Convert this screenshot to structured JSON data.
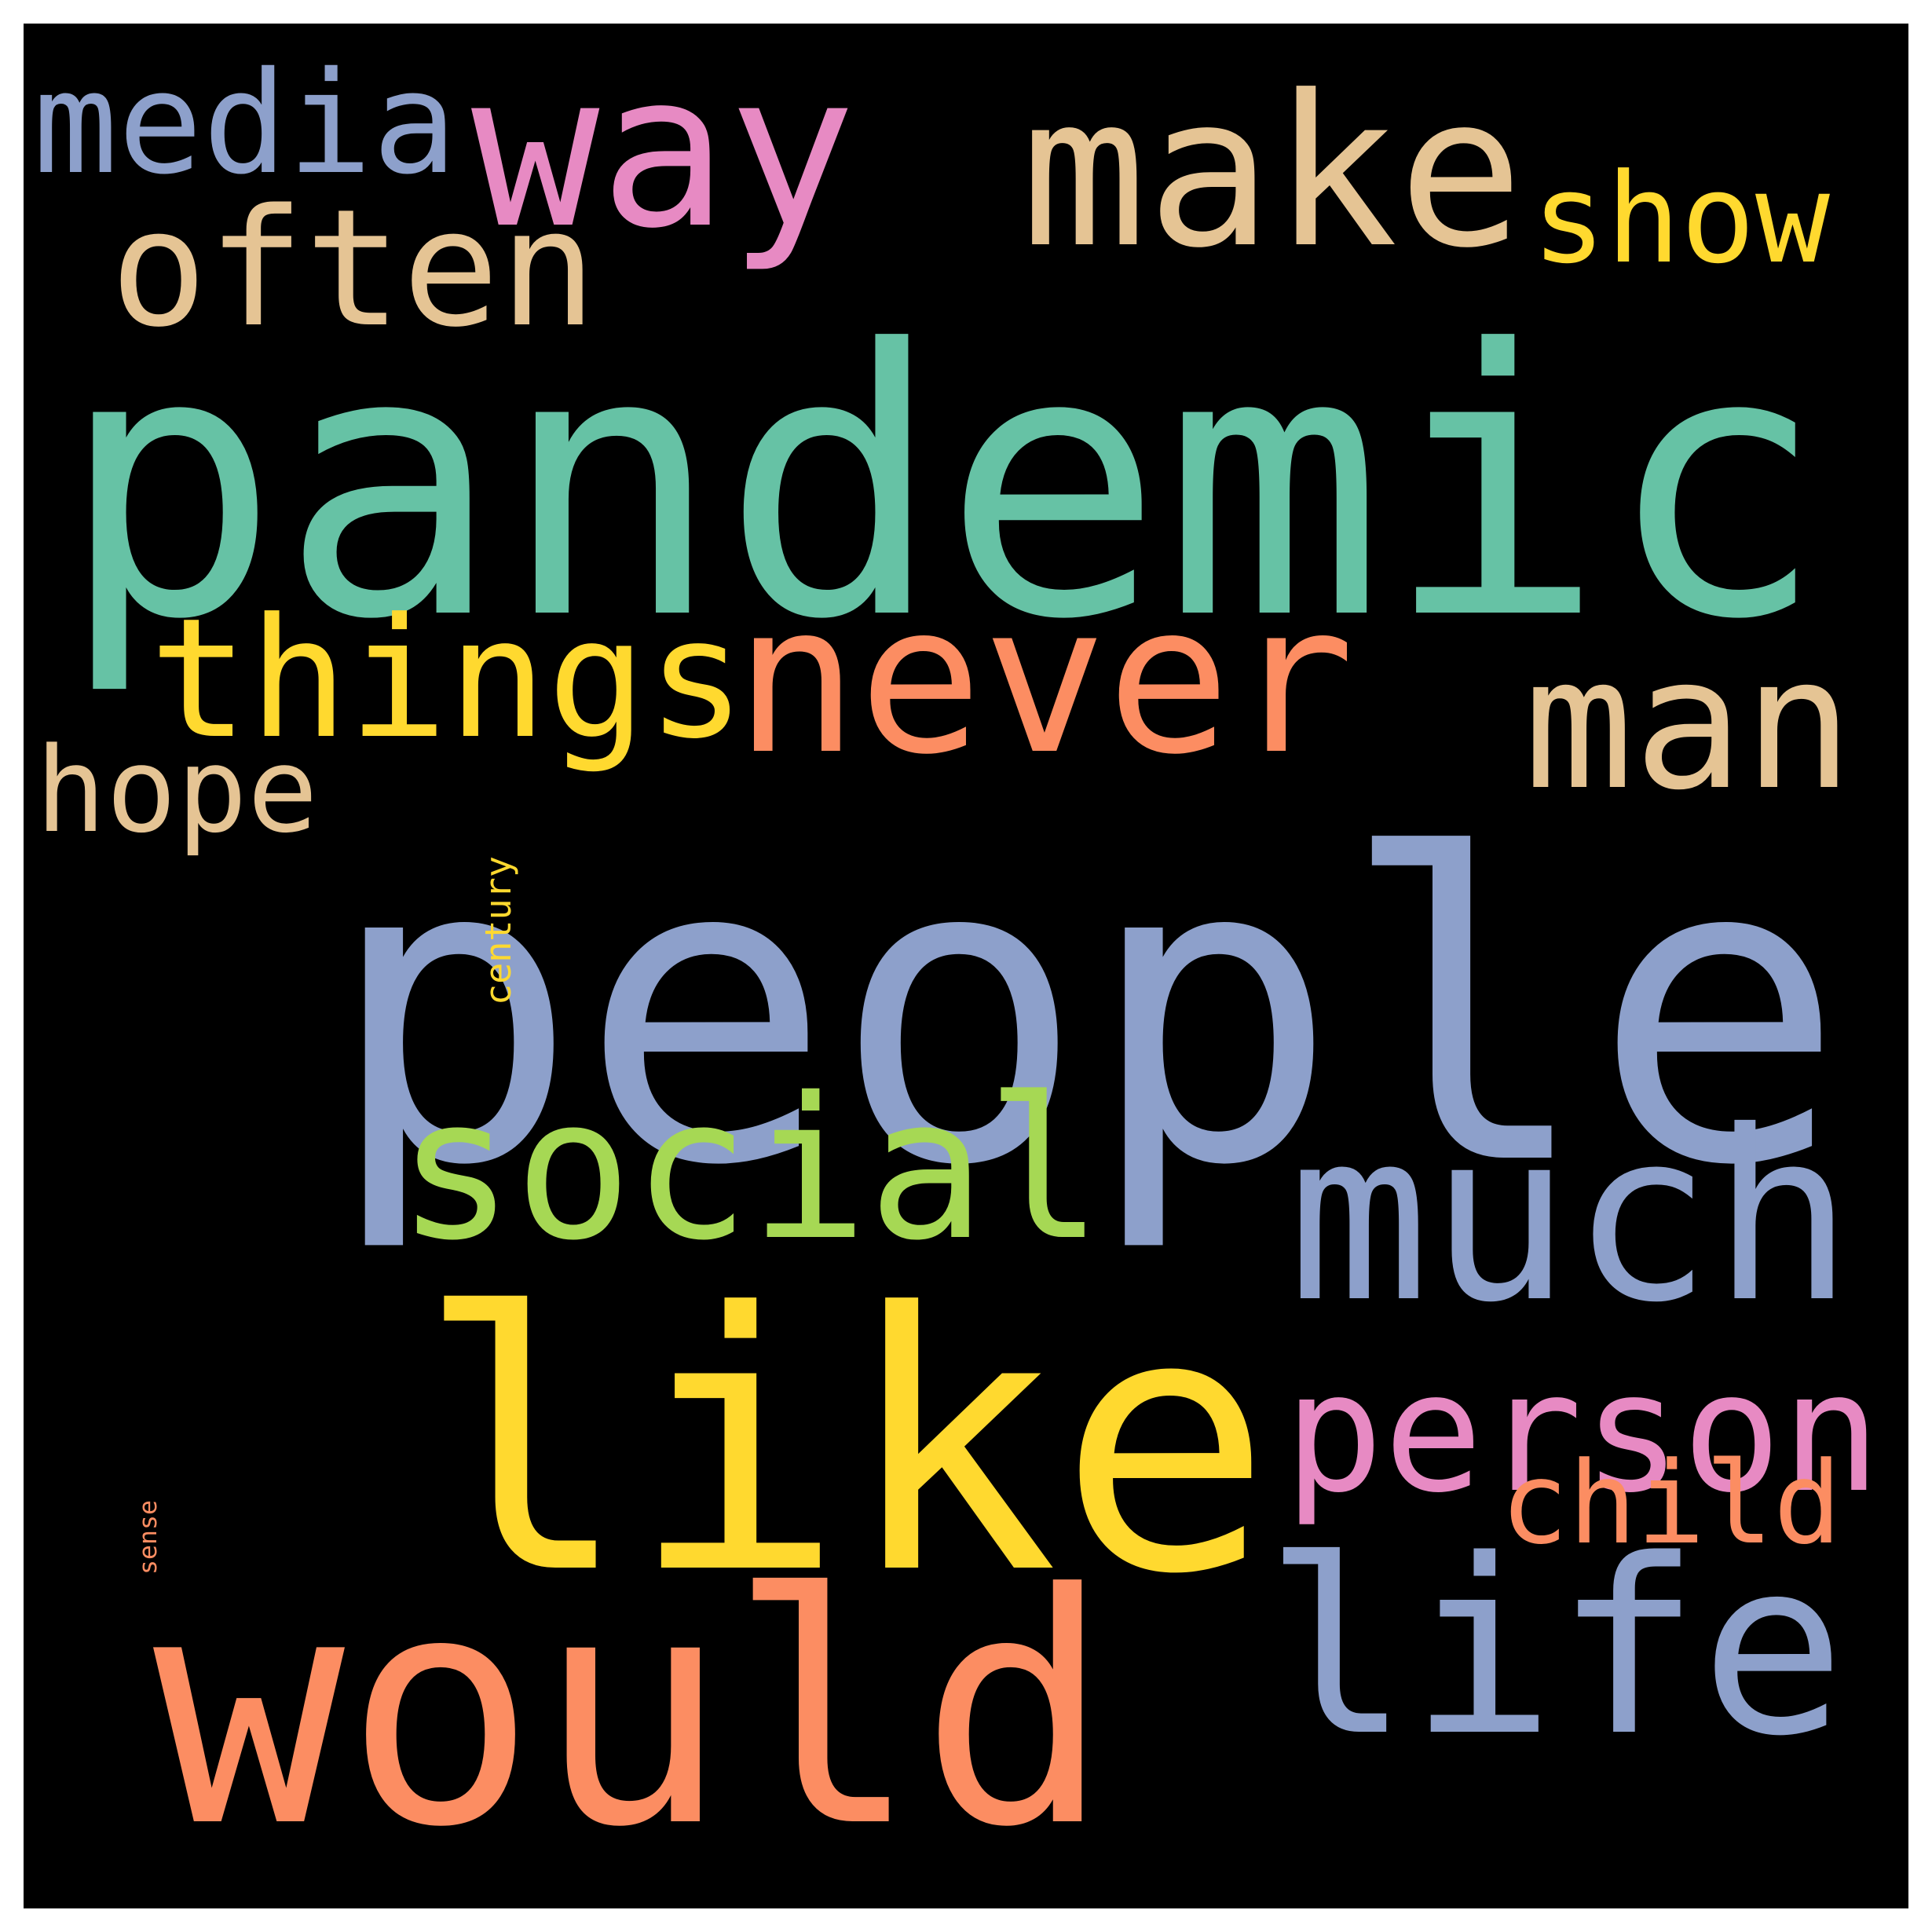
{
  "words": {
    "people": {
      "text": "people",
      "color": "#8DA0CB"
    },
    "pandemic": {
      "text": "pandemic",
      "color": "#66C2A5"
    },
    "like": {
      "text": "like",
      "color": "#FFD92F"
    },
    "would": {
      "text": "would",
      "color": "#FC8D62"
    },
    "much": {
      "text": "much",
      "color": "#8DA0CB"
    },
    "way": {
      "text": "way",
      "color": "#E78AC3"
    },
    "make": {
      "text": "make",
      "color": "#E5C494"
    },
    "never": {
      "text": "never",
      "color": "#FC8D62"
    },
    "things": {
      "text": "things",
      "color": "#FFD92F"
    },
    "social": {
      "text": "social",
      "color": "#A6D854"
    },
    "life": {
      "text": "life",
      "color": "#8DA0CB"
    },
    "person": {
      "text": "person",
      "color": "#E78AC3"
    },
    "century": {
      "text": "century",
      "color": "#FFD92F"
    },
    "often": {
      "text": "often",
      "color": "#E5C494"
    },
    "man": {
      "text": "man",
      "color": "#E5C494"
    },
    "media": {
      "text": "media",
      "color": "#8DA0CB"
    },
    "show": {
      "text": "show",
      "color": "#FFD92F"
    },
    "child": {
      "text": "child",
      "color": "#FC8D62"
    },
    "hope": {
      "text": "hope",
      "color": "#E5C494"
    },
    "sense": {
      "text": "sense",
      "color": "#FC8D62"
    }
  },
  "background_color": "#000000"
}
